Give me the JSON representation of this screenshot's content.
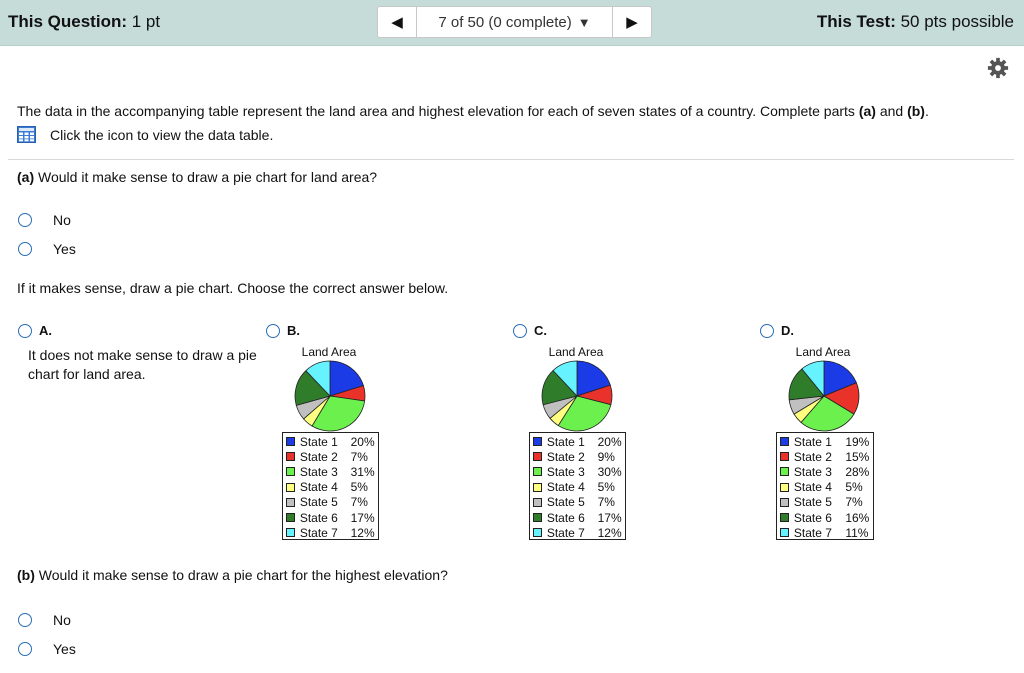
{
  "header": {
    "question_label": "This Question:",
    "question_points": "1 pt",
    "nav_position": "7 of 50 (0 complete)",
    "test_label": "This Test:",
    "test_points": "50 pts possible"
  },
  "intro": {
    "text_before": "The data in the accompanying table represent the land area and highest elevation for each of seven states of a country. Complete parts ",
    "part_a": "(a)",
    "text_and": " and ",
    "part_b": "(b)",
    "text_end": ".",
    "table_link": "Click the icon to view the data table."
  },
  "part_a": {
    "label": "(a)",
    "question": " Would it make sense to draw a pie chart for land area?",
    "options": [
      "No",
      "Yes"
    ]
  },
  "pie_prompt": "If it makes sense, draw a pie chart. Choose the correct answer below.",
  "choices": {
    "a": {
      "letter": "A.",
      "text": "It does not make sense to draw a pie chart for land area."
    },
    "b": {
      "letter": "B."
    },
    "c": {
      "letter": "C."
    },
    "d": {
      "letter": "D."
    }
  },
  "part_b": {
    "label": "(b)",
    "question": " Would it make sense to draw a pie chart for the highest elevation?",
    "options": [
      "No",
      "Yes"
    ]
  },
  "colors": [
    "#1a3be6",
    "#e8322a",
    "#6cf04e",
    "#ffff80",
    "#c0c0c0",
    "#2f7d2a",
    "#66f2ff"
  ],
  "chart_data": [
    {
      "type": "pie",
      "title": "Land Area",
      "categories": [
        "State 1",
        "State 2",
        "State 3",
        "State 4",
        "State 5",
        "State 6",
        "State 7"
      ],
      "values": [
        20,
        7,
        31,
        5,
        7,
        17,
        12
      ],
      "value_labels": [
        "20%",
        "7%",
        "31%",
        "5%",
        "7%",
        "17%",
        "12%"
      ]
    },
    {
      "type": "pie",
      "title": "Land Area",
      "categories": [
        "State 1",
        "State 2",
        "State 3",
        "State 4",
        "State 5",
        "State 6",
        "State 7"
      ],
      "values": [
        20,
        9,
        30,
        5,
        7,
        17,
        12
      ],
      "value_labels": [
        "20%",
        "9%",
        "30%",
        "5%",
        "7%",
        "17%",
        "12%"
      ]
    },
    {
      "type": "pie",
      "title": "Land Area",
      "categories": [
        "State 1",
        "State 2",
        "State 3",
        "State 4",
        "State 5",
        "State 6",
        "State 7"
      ],
      "values": [
        19,
        15,
        28,
        5,
        7,
        16,
        11
      ],
      "value_labels": [
        "19%",
        "15%",
        "28%",
        "5%",
        "7%",
        "16%",
        "11%"
      ]
    }
  ]
}
